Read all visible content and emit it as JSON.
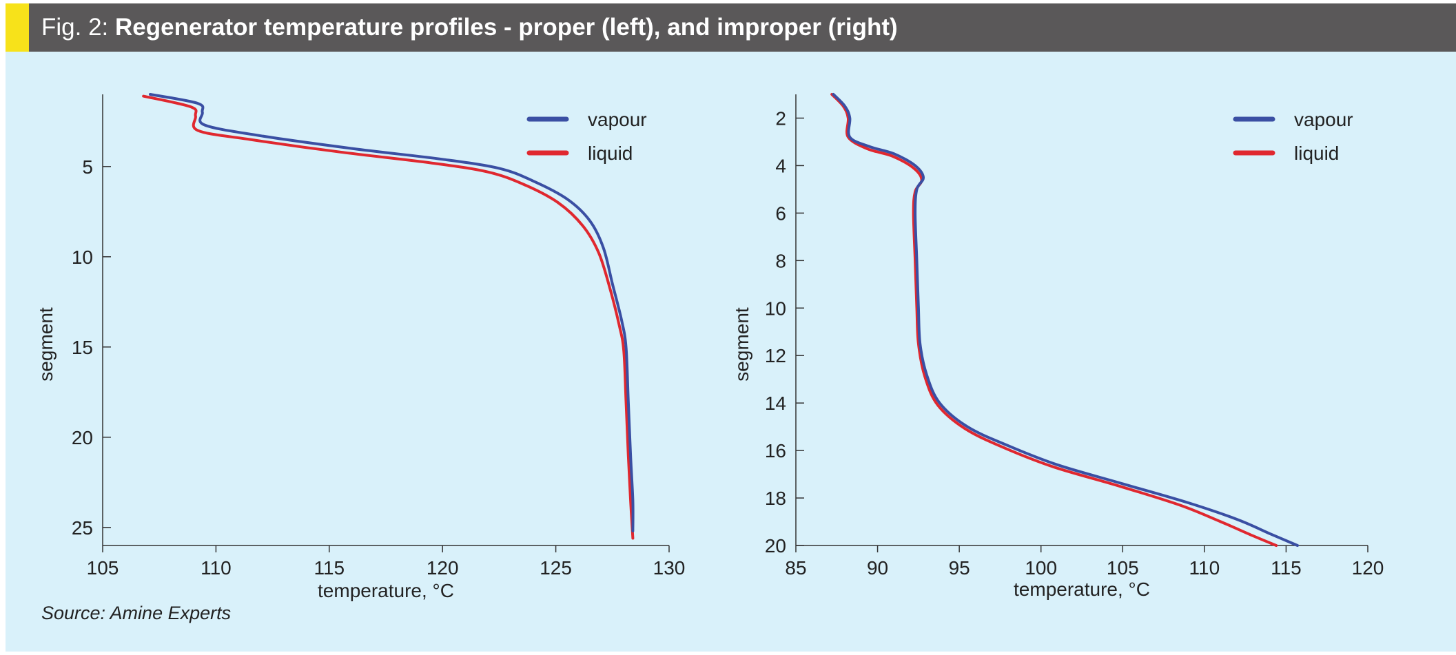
{
  "figure": {
    "label": "Fig. 2:",
    "title": "Regenerator temperature profiles - proper (left), and improper (right)",
    "source": "Source: Amine Experts"
  },
  "colors": {
    "vapour": "#3a4fa3",
    "liquid": "#e0282f",
    "axis": "#333333",
    "background": "#d9f1fa",
    "header": "#5a5859",
    "accent": "#f7e21a"
  },
  "chart_data": [
    {
      "type": "line",
      "title": "proper",
      "xlabel": "temperature, °C",
      "ylabel": "segment",
      "xlim": [
        105,
        130
      ],
      "ylim": [
        1,
        26
      ],
      "y_inverted": true,
      "xticks": [
        105,
        110,
        115,
        120,
        125,
        130
      ],
      "yticks": [
        5,
        10,
        15,
        20,
        25
      ],
      "grid": false,
      "legend_position": "top-right",
      "series": [
        {
          "name": "vapour",
          "color": "#3a4fa3",
          "points": [
            [
              107.1,
              1.0
            ],
            [
              109.2,
              1.5
            ],
            [
              109.4,
              2.0
            ],
            [
              109.5,
              2.7
            ],
            [
              112.0,
              3.3
            ],
            [
              116.0,
              4.0
            ],
            [
              120.0,
              4.6
            ],
            [
              122.5,
              5.1
            ],
            [
              124.0,
              5.8
            ],
            [
              125.5,
              6.8
            ],
            [
              126.5,
              8.0
            ],
            [
              127.1,
              9.5
            ],
            [
              127.5,
              11.5
            ],
            [
              127.9,
              13.5
            ],
            [
              128.1,
              15.0
            ],
            [
              128.2,
              18.0
            ],
            [
              128.3,
              21.0
            ],
            [
              128.4,
              23.5
            ],
            [
              128.4,
              25.2
            ]
          ]
        },
        {
          "name": "liquid",
          "color": "#e0282f",
          "points": [
            [
              106.8,
              1.1
            ],
            [
              108.9,
              1.7
            ],
            [
              109.1,
              2.2
            ],
            [
              109.2,
              3.0
            ],
            [
              111.5,
              3.5
            ],
            [
              115.5,
              4.2
            ],
            [
              119.5,
              4.8
            ],
            [
              122.0,
              5.3
            ],
            [
              123.6,
              6.0
            ],
            [
              125.1,
              7.0
            ],
            [
              126.2,
              8.3
            ],
            [
              126.9,
              9.8
            ],
            [
              127.4,
              11.8
            ],
            [
              127.8,
              13.8
            ],
            [
              128.0,
              15.2
            ],
            [
              128.1,
              18.0
            ],
            [
              128.2,
              21.0
            ],
            [
              128.3,
              23.5
            ],
            [
              128.4,
              25.6
            ]
          ]
        }
      ]
    },
    {
      "type": "line",
      "title": "improper",
      "xlabel": "temperature, °C",
      "ylabel": "segment",
      "xlim": [
        85,
        120
      ],
      "ylim": [
        1,
        20
      ],
      "y_inverted": true,
      "xticks": [
        85,
        90,
        95,
        100,
        105,
        110,
        115,
        120
      ],
      "yticks": [
        2,
        4,
        6,
        8,
        10,
        12,
        14,
        16,
        18,
        20
      ],
      "grid": false,
      "legend_position": "top-right",
      "series": [
        {
          "name": "vapour",
          "color": "#3a4fa3",
          "points": [
            [
              87.3,
              1.0
            ],
            [
              88.0,
              1.5
            ],
            [
              88.3,
              2.0
            ],
            [
              88.3,
              2.8
            ],
            [
              89.5,
              3.2
            ],
            [
              91.0,
              3.5
            ],
            [
              92.3,
              4.0
            ],
            [
              92.8,
              4.5
            ],
            [
              92.4,
              5.0
            ],
            [
              92.3,
              6.0
            ],
            [
              92.4,
              8.0
            ],
            [
              92.5,
              10.0
            ],
            [
              92.6,
              11.5
            ],
            [
              93.0,
              12.8
            ],
            [
              93.8,
              14.0
            ],
            [
              95.5,
              15.0
            ],
            [
              98.0,
              15.8
            ],
            [
              101.0,
              16.6
            ],
            [
              105.0,
              17.4
            ],
            [
              109.0,
              18.2
            ],
            [
              112.0,
              18.9
            ],
            [
              114.0,
              19.5
            ],
            [
              115.7,
              20.0
            ]
          ]
        },
        {
          "name": "liquid",
          "color": "#e0282f",
          "points": [
            [
              87.2,
              1.0
            ],
            [
              87.9,
              1.5
            ],
            [
              88.2,
              2.0
            ],
            [
              88.2,
              2.8
            ],
            [
              89.4,
              3.3
            ],
            [
              90.9,
              3.6
            ],
            [
              92.2,
              4.1
            ],
            [
              92.7,
              4.6
            ],
            [
              92.3,
              5.1
            ],
            [
              92.2,
              6.0
            ],
            [
              92.3,
              8.0
            ],
            [
              92.4,
              10.0
            ],
            [
              92.5,
              11.5
            ],
            [
              92.9,
              12.9
            ],
            [
              93.7,
              14.1
            ],
            [
              95.4,
              15.1
            ],
            [
              97.8,
              15.9
            ],
            [
              100.8,
              16.7
            ],
            [
              104.8,
              17.5
            ],
            [
              108.5,
              18.3
            ],
            [
              111.0,
              19.0
            ],
            [
              113.0,
              19.6
            ],
            [
              114.4,
              20.0
            ]
          ]
        }
      ]
    }
  ]
}
